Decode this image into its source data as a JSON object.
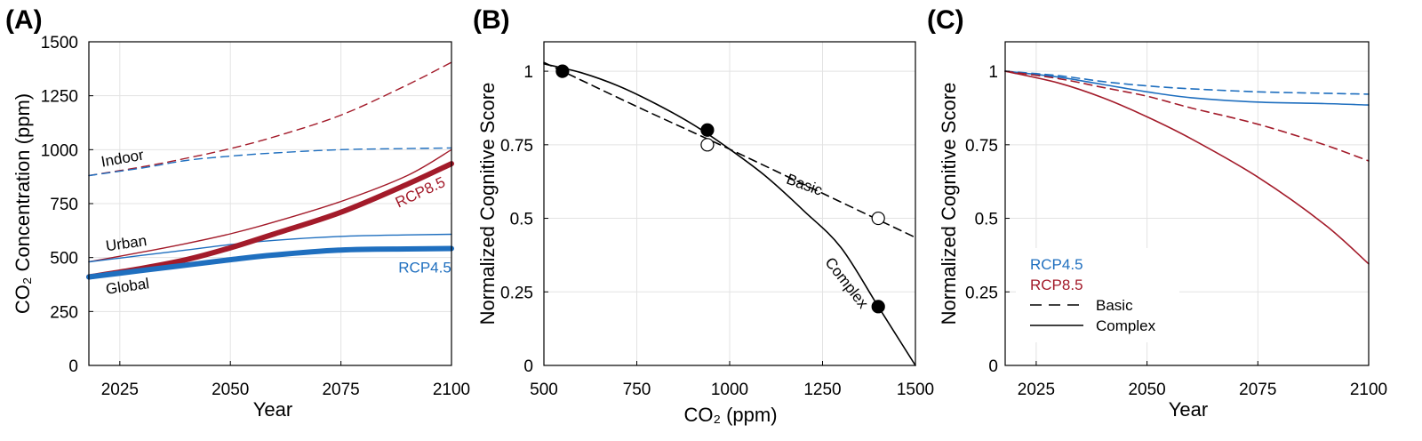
{
  "figure": {
    "panel_labels": [
      "(A)",
      "(B)",
      "(C)"
    ],
    "colors": {
      "rcp45": "#1f6fbf",
      "rcp85": "#a31b2a",
      "black": "#000000",
      "grid": "#e3e3e3"
    }
  },
  "chart_data": [
    {
      "panel": "(A)",
      "type": "line",
      "xlabel": "Year",
      "ylabel": "CO₂ Concentration (ppm)",
      "xlim": [
        2018,
        2100
      ],
      "ylim": [
        0,
        1500
      ],
      "xticks": [
        2025,
        2050,
        2075,
        2100
      ],
      "yticks": [
        0,
        250,
        500,
        750,
        1000,
        1250,
        1500
      ],
      "grid": true,
      "x": [
        2018,
        2030,
        2040,
        2050,
        2060,
        2075,
        2090,
        2100
      ],
      "series": [
        {
          "group": "Indoor",
          "scenario": "RCP8.5",
          "color": "#a31b2a",
          "style": "dashed",
          "weight": "thin",
          "values": [
            880,
            920,
            960,
            1005,
            1060,
            1160,
            1300,
            1405
          ]
        },
        {
          "group": "Indoor",
          "scenario": "RCP4.5",
          "color": "#1f6fbf",
          "style": "dashed",
          "weight": "thin",
          "values": [
            880,
            915,
            950,
            970,
            985,
            1000,
            1005,
            1008
          ]
        },
        {
          "group": "Urban",
          "scenario": "RCP8.5",
          "color": "#a31b2a",
          "style": "solid",
          "weight": "thin",
          "values": [
            480,
            525,
            565,
            610,
            665,
            760,
            880,
            1000
          ]
        },
        {
          "group": "Urban",
          "scenario": "RCP4.5",
          "color": "#1f6fbf",
          "style": "solid",
          "weight": "thin",
          "values": [
            480,
            510,
            535,
            560,
            580,
            598,
            605,
            608
          ]
        },
        {
          "group": "Global",
          "scenario": "RCP8.5",
          "color": "#a31b2a",
          "style": "solid",
          "weight": "thick",
          "values": [
            410,
            450,
            490,
            545,
            610,
            710,
            840,
            935
          ]
        },
        {
          "group": "Global",
          "scenario": "RCP4.5",
          "color": "#1f6fbf",
          "style": "solid",
          "weight": "thick",
          "values": [
            410,
            440,
            465,
            490,
            512,
            535,
            540,
            542
          ]
        }
      ],
      "annotations": [
        {
          "text": "Indoor",
          "color": "#000000",
          "x": 2021,
          "y": 920,
          "rotate": -10
        },
        {
          "text": "Urban",
          "color": "#000000",
          "x": 2022,
          "y": 530,
          "rotate": -8
        },
        {
          "text": "Global",
          "color": "#000000",
          "x": 2022,
          "y": 330,
          "rotate": -8
        },
        {
          "text": "RCP8.5",
          "color": "#a31b2a",
          "x": 2088,
          "y": 730,
          "rotate": -25
        },
        {
          "text": "RCP4.5",
          "color": "#1f6fbf",
          "x": 2088,
          "y": 430,
          "rotate": 0
        }
      ]
    },
    {
      "panel": "(B)",
      "type": "line",
      "xlabel": "CO₂ (ppm)",
      "ylabel": "Normalized Cognitive Score",
      "xlim": [
        500,
        1500
      ],
      "ylim": [
        0,
        1.1
      ],
      "xticks": [
        500,
        750,
        1000,
        1250,
        1500
      ],
      "yticks": [
        0,
        0.25,
        0.5,
        0.75,
        1
      ],
      "yticklabels": [
        "0",
        "0.25",
        "0.5",
        "0.75",
        "1"
      ],
      "grid": true,
      "series": [
        {
          "name": "Basic",
          "color": "#000000",
          "style": "dashed",
          "x": [
            500,
            750,
            1000,
            1250,
            1500
          ],
          "values": [
            1.03,
            0.88,
            0.735,
            0.585,
            0.435
          ]
        },
        {
          "name": "Complex",
          "color": "#000000",
          "style": "solid",
          "x": [
            500,
            600,
            700,
            800,
            900,
            1000,
            1100,
            1200,
            1300,
            1400,
            1500
          ],
          "values": [
            1.025,
            0.995,
            0.95,
            0.89,
            0.82,
            0.735,
            0.64,
            0.525,
            0.4,
            0.2,
            0.0
          ]
        }
      ],
      "points": {
        "filled": {
          "x": [
            550,
            940,
            1400
          ],
          "y": [
            1.0,
            0.8,
            0.2
          ]
        },
        "open": {
          "x": [
            940,
            1400
          ],
          "y": [
            0.75,
            0.5
          ]
        }
      },
      "annotations": [
        {
          "text": "Basic",
          "color": "#000000",
          "x": 1150,
          "y": 0.62,
          "rotate": 20
        },
        {
          "text": "Complex",
          "color": "#000000",
          "x": 1255,
          "y": 0.35,
          "rotate": 52
        }
      ]
    },
    {
      "panel": "(C)",
      "type": "line",
      "xlabel": "Year",
      "ylabel": "Normalized Cognitive Score",
      "xlim": [
        2018,
        2100
      ],
      "ylim": [
        0,
        1.1
      ],
      "xticks": [
        2025,
        2050,
        2075,
        2100
      ],
      "yticks": [
        0,
        0.25,
        0.5,
        0.75,
        1
      ],
      "yticklabels": [
        "0",
        "0.25",
        "0.5",
        "0.75",
        "1"
      ],
      "grid": true,
      "x": [
        2018,
        2030,
        2040,
        2050,
        2060,
        2075,
        2090,
        2100
      ],
      "series": [
        {
          "scenario": "RCP4.5",
          "test": "Basic",
          "color": "#1f6fbf",
          "style": "dashed",
          "values": [
            1.0,
            0.985,
            0.965,
            0.95,
            0.94,
            0.93,
            0.925,
            0.922
          ]
        },
        {
          "scenario": "RCP4.5",
          "test": "Complex",
          "color": "#1f6fbf",
          "style": "solid",
          "values": [
            1.0,
            0.98,
            0.955,
            0.93,
            0.91,
            0.895,
            0.89,
            0.885
          ]
        },
        {
          "scenario": "RCP8.5",
          "test": "Basic",
          "color": "#a31b2a",
          "style": "dashed",
          "values": [
            1.0,
            0.975,
            0.945,
            0.915,
            0.875,
            0.82,
            0.75,
            0.695
          ]
        },
        {
          "scenario": "RCP8.5",
          "test": "Complex",
          "color": "#a31b2a",
          "style": "solid",
          "values": [
            1.0,
            0.96,
            0.91,
            0.845,
            0.77,
            0.64,
            0.48,
            0.345
          ]
        }
      ],
      "legend": {
        "placement": "lower-left",
        "entries": [
          {
            "text": "RCP4.5",
            "color": "#1f6fbf",
            "style": "none"
          },
          {
            "text": "RCP8.5",
            "color": "#a31b2a",
            "style": "none"
          },
          {
            "text": "Basic",
            "color": "#000000",
            "style": "dashed"
          },
          {
            "text": "Complex",
            "color": "#000000",
            "style": "solid"
          }
        ]
      }
    }
  ]
}
